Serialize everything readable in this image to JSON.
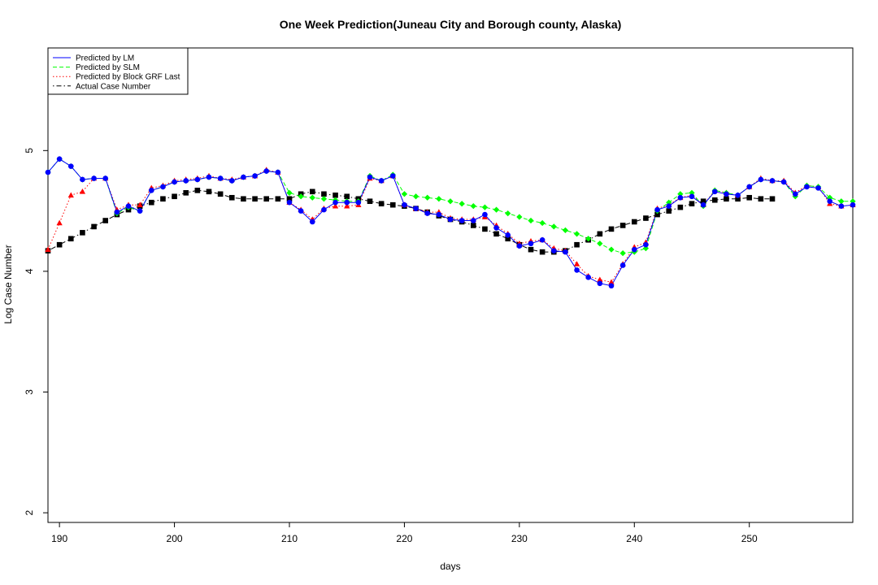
{
  "chart_data": {
    "type": "line",
    "title": "One Week Prediction(Juneau City and Borough county, Alaska)",
    "xlabel": "days",
    "ylabel": "Log Case Number",
    "xlim": [
      189,
      259
    ],
    "ylim": [
      1.92,
      5.85
    ],
    "x_ticks": [
      "190",
      "200",
      "210",
      "220",
      "230",
      "240",
      "250"
    ],
    "y_ticks": [
      "2",
      "3",
      "4",
      "5"
    ],
    "grid": false,
    "legend_position": "top-left",
    "x": [
      189,
      190,
      191,
      192,
      193,
      194,
      195,
      196,
      197,
      198,
      199,
      200,
      201,
      202,
      203,
      204,
      205,
      206,
      207,
      208,
      209,
      210,
      211,
      212,
      213,
      214,
      215,
      216,
      217,
      218,
      219,
      220,
      221,
      222,
      223,
      224,
      225,
      226,
      227,
      228,
      229,
      230,
      231,
      232,
      233,
      234,
      235,
      236,
      237,
      238,
      239,
      240,
      241,
      242,
      243,
      244,
      245,
      246,
      247,
      248,
      249,
      250,
      251,
      252,
      253,
      254,
      255,
      256,
      257,
      258,
      259
    ],
    "series": [
      {
        "name": "Predicted by LM",
        "color": "#0000ff",
        "line": "solid",
        "marker": "circle",
        "values": [
          4.82,
          4.93,
          4.87,
          4.76,
          4.77,
          4.77,
          4.49,
          4.54,
          4.5,
          4.67,
          4.7,
          4.74,
          4.75,
          4.76,
          4.78,
          4.77,
          4.75,
          4.78,
          4.79,
          4.83,
          4.82,
          4.57,
          4.5,
          4.41,
          4.51,
          4.57,
          4.57,
          4.57,
          4.78,
          4.75,
          4.79,
          4.55,
          4.52,
          4.48,
          4.47,
          4.43,
          4.42,
          4.42,
          4.47,
          4.36,
          4.3,
          4.21,
          4.23,
          4.26,
          4.17,
          4.16,
          4.01,
          3.95,
          3.9,
          3.88,
          4.05,
          4.18,
          4.22,
          4.51,
          4.54,
          4.61,
          4.62,
          4.55,
          4.66,
          4.64,
          4.63,
          4.7,
          4.76,
          4.75,
          4.74,
          4.64,
          4.7,
          4.69,
          4.58,
          4.54,
          4.55
        ]
      },
      {
        "name": "Predicted by SLM",
        "color": "#00ff00",
        "line": "dashed",
        "marker": "diamond",
        "values": [
          4.82,
          4.93,
          4.87,
          4.76,
          4.77,
          4.77,
          4.48,
          4.53,
          4.5,
          4.67,
          4.7,
          4.74,
          4.75,
          4.76,
          4.78,
          4.77,
          4.75,
          4.78,
          4.79,
          4.83,
          4.82,
          4.65,
          4.62,
          4.61,
          4.6,
          4.59,
          4.58,
          4.58,
          4.79,
          4.75,
          4.8,
          4.64,
          4.62,
          4.61,
          4.6,
          4.58,
          4.56,
          4.54,
          4.53,
          4.51,
          4.48,
          4.45,
          4.42,
          4.4,
          4.37,
          4.34,
          4.31,
          4.27,
          4.23,
          4.18,
          4.15,
          4.16,
          4.19,
          4.5,
          4.57,
          4.64,
          4.65,
          4.54,
          4.67,
          4.65,
          4.63,
          4.7,
          4.76,
          4.75,
          4.74,
          4.62,
          4.71,
          4.7,
          4.61,
          4.58,
          4.58
        ]
      },
      {
        "name": "Predicted by Block GRF Last",
        "color": "#ff0000",
        "line": "dotted",
        "marker": "triangle",
        "values": [
          4.18,
          4.4,
          4.63,
          4.66,
          4.77,
          4.77,
          4.51,
          4.55,
          4.55,
          4.69,
          4.71,
          4.75,
          4.76,
          4.77,
          4.79,
          4.77,
          4.76,
          4.78,
          4.79,
          4.84,
          4.82,
          4.57,
          4.51,
          4.43,
          4.52,
          4.54,
          4.54,
          4.55,
          4.77,
          4.75,
          4.79,
          4.55,
          4.52,
          4.49,
          4.49,
          4.44,
          4.43,
          4.43,
          4.45,
          4.38,
          4.31,
          4.23,
          4.25,
          4.26,
          4.19,
          4.17,
          4.06,
          3.96,
          3.93,
          3.91,
          4.06,
          4.2,
          4.24,
          4.52,
          4.55,
          4.61,
          4.63,
          4.55,
          4.67,
          4.65,
          4.63,
          4.7,
          4.77,
          4.75,
          4.75,
          4.65,
          4.71,
          4.7,
          4.56,
          4.54,
          4.55
        ]
      },
      {
        "name": "Actual Case Number",
        "color": "#000000",
        "line": "dotdash",
        "marker": "square",
        "values": [
          4.17,
          4.22,
          4.27,
          4.32,
          4.37,
          4.42,
          4.47,
          4.51,
          4.54,
          4.57,
          4.6,
          4.62,
          4.65,
          4.67,
          4.66,
          4.64,
          4.61,
          4.6,
          4.6,
          4.6,
          4.6,
          4.6,
          4.64,
          4.66,
          4.64,
          4.63,
          4.62,
          4.6,
          4.58,
          4.56,
          4.55,
          4.54,
          4.52,
          4.49,
          4.46,
          4.43,
          4.41,
          4.38,
          4.35,
          4.31,
          4.27,
          4.22,
          4.18,
          4.16,
          4.16,
          4.17,
          4.22,
          4.26,
          4.31,
          4.35,
          4.38,
          4.41,
          4.44,
          4.47,
          4.5,
          4.53,
          4.56,
          4.58,
          4.59,
          4.6,
          4.6,
          4.61,
          4.6,
          4.6,
          null,
          null,
          null,
          null,
          null,
          null,
          null
        ]
      }
    ]
  }
}
